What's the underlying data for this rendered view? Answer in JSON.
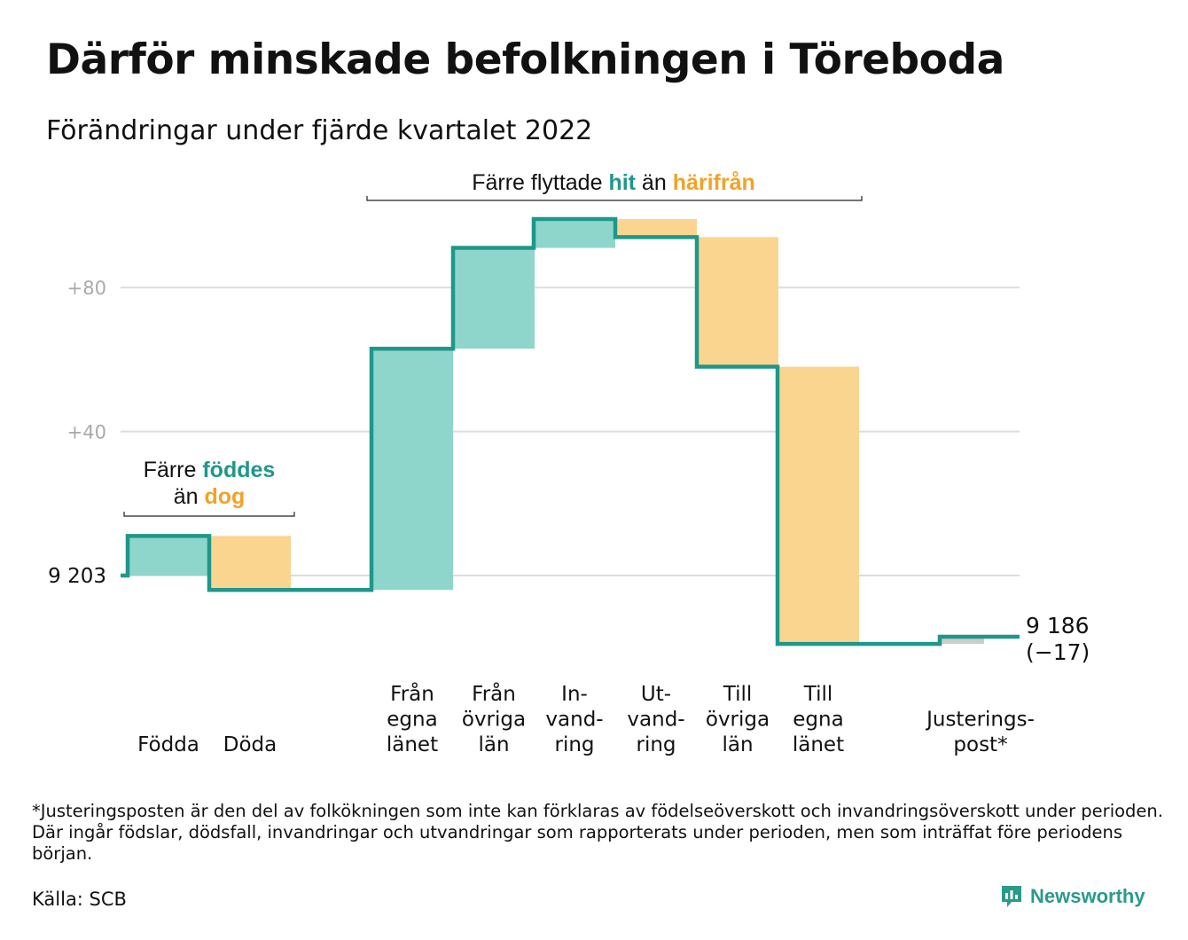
{
  "title": "Därför minskade befolkningen i Töreboda",
  "subtitle": "Förändringar under fjärde kvartalet 2022",
  "colors": {
    "line": "#1f978a",
    "increase": "#8ed6cc",
    "decrease": "#fad58f",
    "adjust": "#cccccc",
    "hit_text": "#1f978a",
    "harifran_text": "#f3a228",
    "grid": "#dddddd",
    "tick": "#aaaaaa"
  },
  "chart_data": {
    "type": "waterfall",
    "start_value": 9203,
    "start_label": "9 203",
    "end_label": "9 186",
    "end_change_label": "(−17)",
    "y_ticks": [
      {
        "value": 80,
        "label": "+80"
      },
      {
        "value": 40,
        "label": "+40"
      }
    ],
    "grid": true,
    "steps": [
      {
        "label_lines": [
          "Födda"
        ],
        "change": 11,
        "kind": "increase"
      },
      {
        "label_lines": [
          "Döda"
        ],
        "change": -15,
        "kind": "decrease"
      },
      {
        "label_lines": [
          "Från",
          "egna",
          "länet"
        ],
        "change": 67,
        "kind": "increase"
      },
      {
        "label_lines": [
          "Från",
          "övriga",
          "län"
        ],
        "change": 28,
        "kind": "increase"
      },
      {
        "label_lines": [
          "In-",
          "vand-",
          "ring"
        ],
        "change": 8,
        "kind": "increase"
      },
      {
        "label_lines": [
          "Ut-",
          "vand-",
          "ring"
        ],
        "change": -5,
        "kind": "decrease"
      },
      {
        "label_lines": [
          "Till",
          "övriga",
          "län"
        ],
        "change": -36,
        "kind": "decrease"
      },
      {
        "label_lines": [
          "Till",
          "egna",
          "länet"
        ],
        "change": -77,
        "kind": "decrease"
      },
      {
        "label_lines": [
          "Justerings-",
          "post*"
        ],
        "change": 2,
        "kind": "adjust"
      }
    ],
    "annotations": [
      {
        "parts": [
          {
            "text": "Färre ",
            "style": "plain"
          },
          {
            "text": "föddes",
            "style": "hit"
          }
        ],
        "parts2": [
          {
            "text": "än ",
            "style": "plain"
          },
          {
            "text": "dog",
            "style": "harifran"
          }
        ]
      },
      {
        "parts": [
          {
            "text": "Färre flyttade ",
            "style": "plain"
          },
          {
            "text": "hit",
            "style": "hit"
          },
          {
            "text": " än ",
            "style": "plain"
          },
          {
            "text": "härifrån",
            "style": "harifran"
          }
        ]
      }
    ]
  },
  "footnote": "*Justeringsposten är den del av folkökningen som inte kan förklaras av födelseöverskott och invandringsöverskott under perioden. Där ingår födslar, dödsfall, invandringar och utvandringar som rapporterats under perioden, men som inträffat före periodens början.",
  "source": "Källa: SCB",
  "brand": {
    "name": "Newsworthy",
    "icon": "newsworthy-logo-icon"
  }
}
